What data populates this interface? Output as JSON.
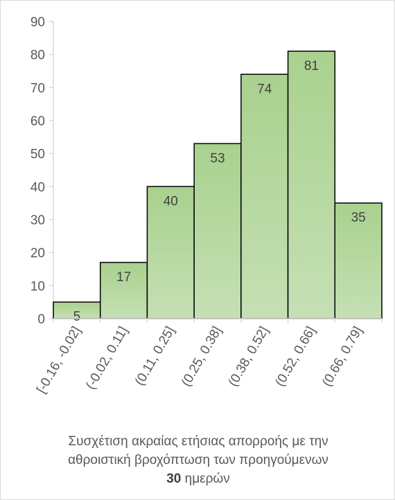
{
  "chart_data": {
    "type": "bar",
    "categories": [
      "[-0.16, -0.02]",
      "(-0.02, 0.11]",
      "(0.11, 0.25]",
      "(0.25, 0.38]",
      "(0.38, 0.52]",
      "(0.52, 0.66]",
      "(0.66, 0.79]"
    ],
    "values": [
      5,
      17,
      40,
      53,
      74,
      81,
      35
    ],
    "title": "",
    "xlabel": {
      "line1": "Συσχέτιση ακραίας ετήσιας απορροής με την",
      "line2": "αθροιστική βροχόπτωση των προηγούμενων",
      "line3_bold": "30",
      "line3_rest": " ημερών"
    },
    "ylabel": "",
    "ylim": [
      0,
      90
    ],
    "yticks": [
      0,
      10,
      20,
      30,
      40,
      50,
      60,
      70,
      80,
      90
    ],
    "data_labels": true,
    "grid": false,
    "legend": "none",
    "colors": {
      "bar_fill": "#a9d18e",
      "bar_stroke": "#000000",
      "axis": "#d9d9d9"
    }
  }
}
